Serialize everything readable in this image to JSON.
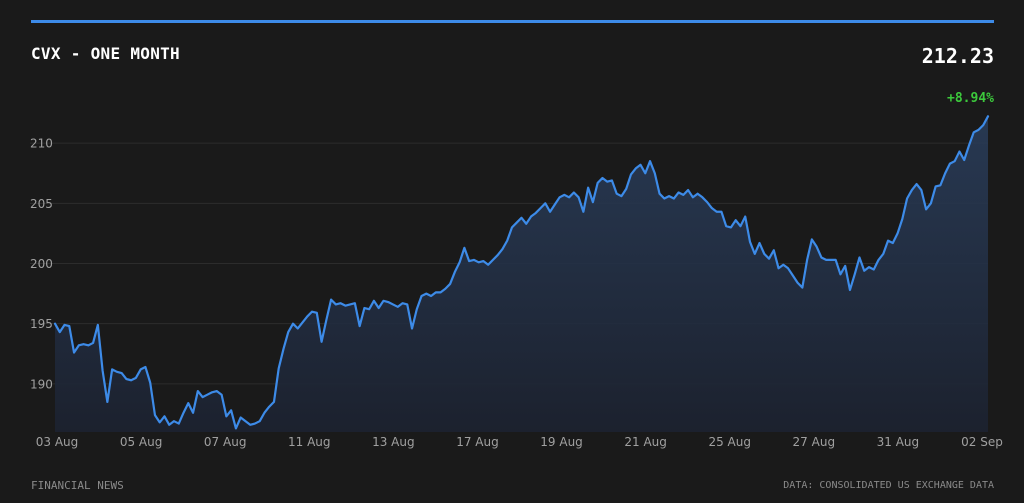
{
  "header": {
    "title": "CVX - ONE MONTH",
    "price": "212.23",
    "change": "+8.94%"
  },
  "footer": {
    "left": "FINANCIAL NEWS",
    "right": "DATA: CONSOLIDATED US EXCHANGE DATA"
  },
  "colors": {
    "background": "#1a1a1a",
    "accent": "#3d8be8",
    "positive": "#3cc93c",
    "grid": "#2c2c2c",
    "axis_text": "#a0a0a0"
  },
  "chart_data": {
    "type": "area",
    "title": "CVX - ONE MONTH",
    "xlabel": "",
    "ylabel": "",
    "ylim": [
      186,
      214
    ],
    "grid": true,
    "y_ticks": [
      190,
      195,
      200,
      205,
      210
    ],
    "x_ticks": [
      "03 Aug",
      "05 Aug",
      "07 Aug",
      "11 Aug",
      "13 Aug",
      "17 Aug",
      "19 Aug",
      "21 Aug",
      "25 Aug",
      "27 Aug",
      "31 Aug",
      "02 Sep"
    ],
    "series": [
      {
        "values": [
          195.0,
          194.3,
          194.9,
          194.8,
          192.6,
          193.2,
          193.3,
          193.2,
          193.4,
          194.9,
          191.1,
          188.5,
          191.2,
          191.0,
          190.9,
          190.4,
          190.3,
          190.5,
          191.2,
          191.4,
          190.1,
          187.4,
          186.8,
          187.3,
          186.6,
          186.9,
          186.7,
          187.6,
          188.4,
          187.6,
          189.4,
          188.9,
          189.1,
          189.3,
          189.4,
          189.1,
          187.3,
          187.8,
          186.3,
          187.2,
          186.9,
          186.6,
          186.7,
          186.9,
          187.6,
          188.1,
          188.5,
          191.3,
          192.9,
          194.3,
          195.0,
          194.6,
          195.1,
          195.6,
          196.0,
          195.9,
          193.5,
          195.3,
          197.0,
          196.6,
          196.7,
          196.5,
          196.6,
          196.7,
          194.8,
          196.3,
          196.2,
          196.9,
          196.3,
          196.9,
          196.8,
          196.6,
          196.4,
          196.7,
          196.6,
          194.6,
          196.2,
          197.3,
          197.5,
          197.3,
          197.6,
          197.6,
          197.9,
          198.3,
          199.3,
          200.1,
          201.3,
          200.2,
          200.3,
          200.1,
          200.2,
          199.9,
          200.3,
          200.7,
          201.2,
          201.9,
          203.0,
          203.4,
          203.8,
          203.3,
          203.9,
          204.2,
          204.6,
          205.0,
          204.3,
          204.9,
          205.5,
          205.7,
          205.5,
          205.9,
          205.5,
          204.3,
          206.3,
          205.1,
          206.7,
          207.1,
          206.8,
          206.9,
          205.8,
          205.6,
          206.2,
          207.4,
          207.9,
          208.2,
          207.5,
          208.5,
          207.5,
          205.8,
          205.4,
          205.6,
          205.4,
          205.9,
          205.7,
          206.1,
          205.5,
          205.8,
          205.5,
          205.1,
          204.6,
          204.3,
          204.3,
          203.1,
          203.0,
          203.6,
          203.1,
          203.9,
          201.8,
          200.8,
          201.7,
          200.8,
          200.4,
          201.1,
          199.6,
          199.9,
          199.6,
          199.0,
          198.4,
          198.0,
          200.3,
          202.0,
          201.4,
          200.5,
          200.3,
          200.3,
          200.3,
          199.1,
          199.8,
          197.8,
          199.1,
          200.5,
          199.4,
          199.7,
          199.5,
          200.3,
          200.8,
          201.9,
          201.7,
          202.5,
          203.7,
          205.4,
          206.1,
          206.6,
          206.1,
          204.5,
          205.0,
          206.4,
          206.5,
          207.5,
          208.3,
          208.5,
          209.3,
          208.6,
          209.8,
          210.9,
          211.1,
          211.5,
          212.23
        ]
      }
    ]
  }
}
